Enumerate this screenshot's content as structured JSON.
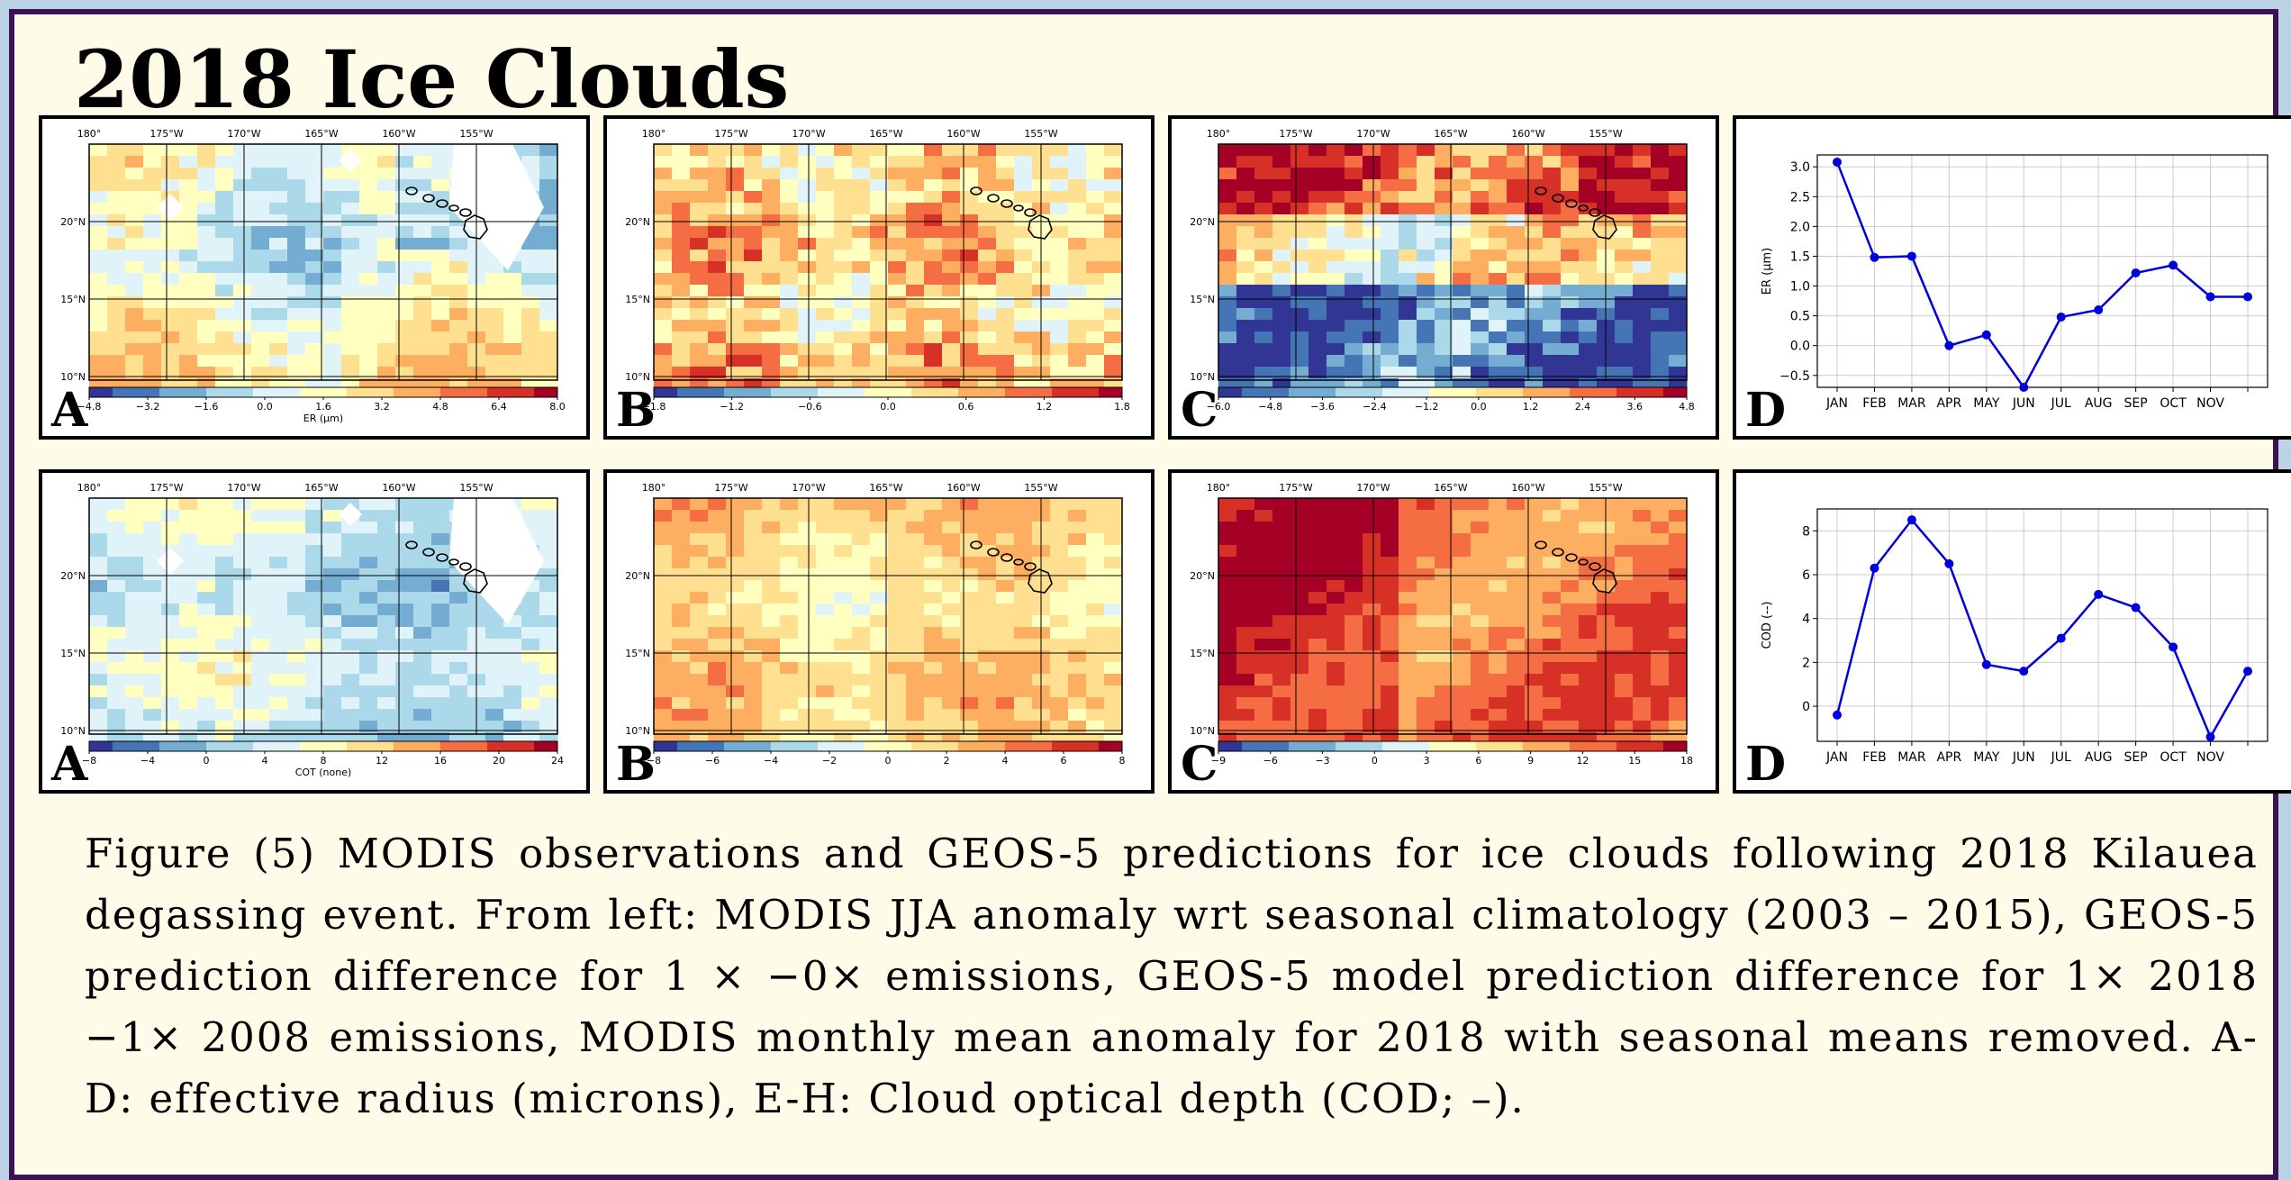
{
  "title": "2018 Ice Clouds",
  "colors": {
    "border": "#3b1354",
    "background": "#fefce8",
    "line": "#0000dd"
  },
  "panel_labels": {
    "a": "A",
    "b": "B",
    "c": "C",
    "d": "D"
  },
  "map_axes": {
    "lon_ticks": [
      "180°",
      "175°W",
      "170°W",
      "165°W",
      "160°W",
      "155°W"
    ],
    "lat_ticks": [
      "20°N",
      "15°N",
      "10°N"
    ]
  },
  "rows": [
    {
      "maps": [
        {
          "label": "A",
          "cbar_ticks": [
            "−4.8",
            "−3.2",
            "−1.6",
            "0.0",
            "1.6",
            "3.2",
            "4.8",
            "6.4",
            "8.0"
          ],
          "cbar_label": "ER (μm)"
        },
        {
          "label": "B",
          "cbar_ticks": [
            "−1.8",
            "−1.2",
            "−0.6",
            "0.0",
            "0.6",
            "1.2",
            "1.8"
          ],
          "cbar_label": ""
        },
        {
          "label": "C",
          "cbar_ticks": [
            "−6.0",
            "−4.8",
            "−3.6",
            "−2.4",
            "−1.2",
            "0.0",
            "1.2",
            "2.4",
            "3.6",
            "4.8"
          ],
          "cbar_label": ""
        }
      ]
    },
    {
      "maps": [
        {
          "label": "A",
          "cbar_ticks": [
            "−8",
            "−4",
            "0",
            "4",
            "8",
            "12",
            "16",
            "20",
            "24"
          ],
          "cbar_label": "COT (none)"
        },
        {
          "label": "B",
          "cbar_ticks": [
            "−8",
            "−6",
            "−4",
            "−2",
            "0",
            "2",
            "4",
            "6",
            "8"
          ],
          "cbar_label": ""
        },
        {
          "label": "C",
          "cbar_ticks": [
            "−9",
            "−6",
            "−3",
            "0",
            "3",
            "6",
            "9",
            "12",
            "15",
            "18"
          ],
          "cbar_label": ""
        }
      ]
    }
  ],
  "chart_data": [
    {
      "type": "line",
      "label": "D",
      "categories": [
        "JAN",
        "FEB",
        "MAR",
        "APR",
        "MAY",
        "JUN",
        "JUL",
        "AUG",
        "SEP",
        "OCT",
        "NOV",
        ""
      ],
      "values": [
        3.08,
        1.48,
        1.5,
        0.0,
        0.18,
        -0.7,
        0.48,
        0.6,
        1.22,
        1.35,
        0.82,
        0.82
      ],
      "ylabel": "ER (μm)",
      "ylim": [
        -0.7,
        3.2
      ],
      "yticks": [
        -0.5,
        0.0,
        0.5,
        1.0,
        1.5,
        2.0,
        2.5,
        3.0
      ],
      "ytick_labels": [
        "−0.5",
        "0.0",
        "0.5",
        "1.0",
        "1.5",
        "2.0",
        "2.5",
        "3.0"
      ],
      "grid": true
    },
    {
      "type": "line",
      "label": "D",
      "categories": [
        "JAN",
        "FEB",
        "MAR",
        "APR",
        "MAY",
        "JUN",
        "JUL",
        "AUG",
        "SEP",
        "OCT",
        "NOV",
        ""
      ],
      "values": [
        -0.4,
        6.3,
        8.5,
        6.5,
        1.9,
        1.6,
        3.1,
        5.1,
        4.5,
        2.7,
        -1.4,
        1.6
      ],
      "ylabel": "COD (--)",
      "ylim": [
        -1.6,
        9.0
      ],
      "yticks": [
        0,
        2,
        4,
        6,
        8
      ],
      "ytick_labels": [
        "0",
        "2",
        "4",
        "6",
        "8"
      ],
      "grid": true
    }
  ],
  "caption": "Figure (5) MODIS observations and GEOS-5 predictions for ice clouds following 2018 Kilauea degassing event. From left: MODIS JJA anomaly wrt seasonal climatology (2003 – 2015), GEOS-5 prediction difference for 1 × −0× emissions, GEOS-5 model prediction difference for 1× 2018 −1× 2008 emissions, MODIS monthly mean anomaly for 2018 with seasonal means removed. A-D: effective radius (microns), E-H: Cloud optical depth (COD; –)."
}
